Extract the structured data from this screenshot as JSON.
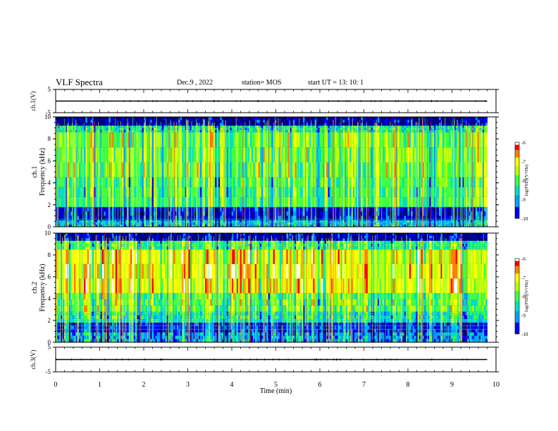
{
  "header": {
    "title": "VLF Spectra",
    "date": "Dec.9 , 2022",
    "station": "station= MOS",
    "start_ut": "start UT =  13: 10: 1"
  },
  "chart_data": [
    {
      "type": "line",
      "panel": "ch1-waveform",
      "ylabel": "ch.1(V)",
      "ylim": [
        -5,
        5
      ],
      "yticks": [
        "5",
        "-5"
      ],
      "series": [
        {
          "x": [
            0,
            9.8
          ],
          "y": [
            0,
            0
          ]
        }
      ],
      "color": "#000000"
    },
    {
      "type": "heatmap",
      "panel": "ch1-spectrogram",
      "ylabel": "Frequency (kHz)",
      "channel_label": "ch.1",
      "yticks": [
        "0",
        "2",
        "4",
        "6",
        "8",
        "10"
      ],
      "ylim": [
        0,
        10
      ],
      "xlim": [
        0,
        9.8
      ],
      "colorbar": {
        "label": "log(PSD)(V²/Hz)",
        "ticks": [
          "-6",
          "-7",
          "-8",
          "-9",
          "-10"
        ],
        "range": [
          -10,
          -6
        ]
      }
    },
    {
      "type": "heatmap",
      "panel": "ch2-spectrogram",
      "ylabel": "Frequency (kHz)",
      "channel_label": "ch.2",
      "yticks": [
        "0",
        "2",
        "4",
        "6",
        "8",
        "10"
      ],
      "ylim": [
        0,
        10
      ],
      "xlim": [
        0,
        9.8
      ],
      "colorbar": {
        "label": "log(PSD)(V²/Hz)",
        "ticks": [
          "-6",
          "-7",
          "-8",
          "-9",
          "-10"
        ],
        "range": [
          -10,
          -6
        ]
      }
    },
    {
      "type": "line",
      "panel": "ch3-waveform",
      "ylabel": "ch.3(V)",
      "ylim": [
        -5,
        5
      ],
      "yticks": [
        "5",
        "-5"
      ],
      "series": [
        {
          "x": [
            0,
            9.8
          ],
          "y": [
            0,
            0
          ]
        }
      ],
      "color": "#000000"
    }
  ],
  "xaxis": {
    "label": "Time (min)",
    "ticks": [
      "0",
      "1",
      "2",
      "3",
      "4",
      "5",
      "6",
      "7",
      "8",
      "9",
      "10"
    ],
    "range": [
      0,
      10
    ]
  }
}
